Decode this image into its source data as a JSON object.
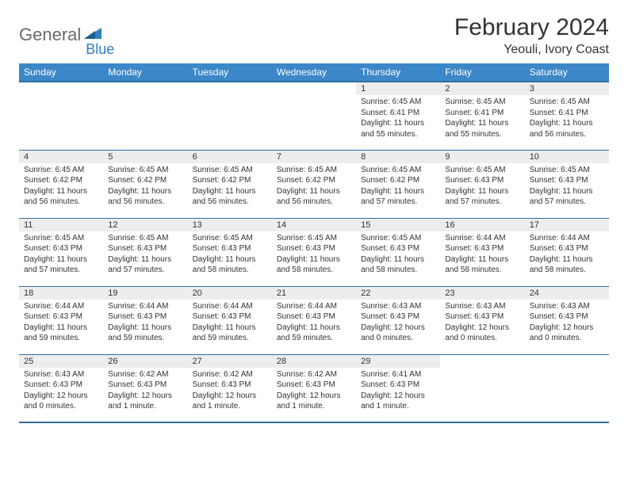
{
  "logo": {
    "text1": "General",
    "text2": "Blue"
  },
  "title": "February 2024",
  "location": "Yeouli, Ivory Coast",
  "colors": {
    "header_bg": "#3c87c7",
    "header_border": "#2f6fa6",
    "daynum_bg": "#ededed",
    "text": "#333333",
    "logo_gray": "#6b6b6b",
    "logo_blue": "#2f7ec0"
  },
  "weekdays": [
    "Sunday",
    "Monday",
    "Tuesday",
    "Wednesday",
    "Thursday",
    "Friday",
    "Saturday"
  ],
  "weeks": [
    [
      {
        "num": "",
        "sunrise": "",
        "sunset": "",
        "daylight": ""
      },
      {
        "num": "",
        "sunrise": "",
        "sunset": "",
        "daylight": ""
      },
      {
        "num": "",
        "sunrise": "",
        "sunset": "",
        "daylight": ""
      },
      {
        "num": "",
        "sunrise": "",
        "sunset": "",
        "daylight": ""
      },
      {
        "num": "1",
        "sunrise": "Sunrise: 6:45 AM",
        "sunset": "Sunset: 6:41 PM",
        "daylight": "Daylight: 11 hours and 55 minutes."
      },
      {
        "num": "2",
        "sunrise": "Sunrise: 6:45 AM",
        "sunset": "Sunset: 6:41 PM",
        "daylight": "Daylight: 11 hours and 55 minutes."
      },
      {
        "num": "3",
        "sunrise": "Sunrise: 6:45 AM",
        "sunset": "Sunset: 6:41 PM",
        "daylight": "Daylight: 11 hours and 56 minutes."
      }
    ],
    [
      {
        "num": "4",
        "sunrise": "Sunrise: 6:45 AM",
        "sunset": "Sunset: 6:42 PM",
        "daylight": "Daylight: 11 hours and 56 minutes."
      },
      {
        "num": "5",
        "sunrise": "Sunrise: 6:45 AM",
        "sunset": "Sunset: 6:42 PM",
        "daylight": "Daylight: 11 hours and 56 minutes."
      },
      {
        "num": "6",
        "sunrise": "Sunrise: 6:45 AM",
        "sunset": "Sunset: 6:42 PM",
        "daylight": "Daylight: 11 hours and 56 minutes."
      },
      {
        "num": "7",
        "sunrise": "Sunrise: 6:45 AM",
        "sunset": "Sunset: 6:42 PM",
        "daylight": "Daylight: 11 hours and 56 minutes."
      },
      {
        "num": "8",
        "sunrise": "Sunrise: 6:45 AM",
        "sunset": "Sunset: 6:42 PM",
        "daylight": "Daylight: 11 hours and 57 minutes."
      },
      {
        "num": "9",
        "sunrise": "Sunrise: 6:45 AM",
        "sunset": "Sunset: 6:43 PM",
        "daylight": "Daylight: 11 hours and 57 minutes."
      },
      {
        "num": "10",
        "sunrise": "Sunrise: 6:45 AM",
        "sunset": "Sunset: 6:43 PM",
        "daylight": "Daylight: 11 hours and 57 minutes."
      }
    ],
    [
      {
        "num": "11",
        "sunrise": "Sunrise: 6:45 AM",
        "sunset": "Sunset: 6:43 PM",
        "daylight": "Daylight: 11 hours and 57 minutes."
      },
      {
        "num": "12",
        "sunrise": "Sunrise: 6:45 AM",
        "sunset": "Sunset: 6:43 PM",
        "daylight": "Daylight: 11 hours and 57 minutes."
      },
      {
        "num": "13",
        "sunrise": "Sunrise: 6:45 AM",
        "sunset": "Sunset: 6:43 PM",
        "daylight": "Daylight: 11 hours and 58 minutes."
      },
      {
        "num": "14",
        "sunrise": "Sunrise: 6:45 AM",
        "sunset": "Sunset: 6:43 PM",
        "daylight": "Daylight: 11 hours and 58 minutes."
      },
      {
        "num": "15",
        "sunrise": "Sunrise: 6:45 AM",
        "sunset": "Sunset: 6:43 PM",
        "daylight": "Daylight: 11 hours and 58 minutes."
      },
      {
        "num": "16",
        "sunrise": "Sunrise: 6:44 AM",
        "sunset": "Sunset: 6:43 PM",
        "daylight": "Daylight: 11 hours and 58 minutes."
      },
      {
        "num": "17",
        "sunrise": "Sunrise: 6:44 AM",
        "sunset": "Sunset: 6:43 PM",
        "daylight": "Daylight: 11 hours and 58 minutes."
      }
    ],
    [
      {
        "num": "18",
        "sunrise": "Sunrise: 6:44 AM",
        "sunset": "Sunset: 6:43 PM",
        "daylight": "Daylight: 11 hours and 59 minutes."
      },
      {
        "num": "19",
        "sunrise": "Sunrise: 6:44 AM",
        "sunset": "Sunset: 6:43 PM",
        "daylight": "Daylight: 11 hours and 59 minutes."
      },
      {
        "num": "20",
        "sunrise": "Sunrise: 6:44 AM",
        "sunset": "Sunset: 6:43 PM",
        "daylight": "Daylight: 11 hours and 59 minutes."
      },
      {
        "num": "21",
        "sunrise": "Sunrise: 6:44 AM",
        "sunset": "Sunset: 6:43 PM",
        "daylight": "Daylight: 11 hours and 59 minutes."
      },
      {
        "num": "22",
        "sunrise": "Sunrise: 6:43 AM",
        "sunset": "Sunset: 6:43 PM",
        "daylight": "Daylight: 12 hours and 0 minutes."
      },
      {
        "num": "23",
        "sunrise": "Sunrise: 6:43 AM",
        "sunset": "Sunset: 6:43 PM",
        "daylight": "Daylight: 12 hours and 0 minutes."
      },
      {
        "num": "24",
        "sunrise": "Sunrise: 6:43 AM",
        "sunset": "Sunset: 6:43 PM",
        "daylight": "Daylight: 12 hours and 0 minutes."
      }
    ],
    [
      {
        "num": "25",
        "sunrise": "Sunrise: 6:43 AM",
        "sunset": "Sunset: 6:43 PM",
        "daylight": "Daylight: 12 hours and 0 minutes."
      },
      {
        "num": "26",
        "sunrise": "Sunrise: 6:42 AM",
        "sunset": "Sunset: 6:43 PM",
        "daylight": "Daylight: 12 hours and 1 minute."
      },
      {
        "num": "27",
        "sunrise": "Sunrise: 6:42 AM",
        "sunset": "Sunset: 6:43 PM",
        "daylight": "Daylight: 12 hours and 1 minute."
      },
      {
        "num": "28",
        "sunrise": "Sunrise: 6:42 AM",
        "sunset": "Sunset: 6:43 PM",
        "daylight": "Daylight: 12 hours and 1 minute."
      },
      {
        "num": "29",
        "sunrise": "Sunrise: 6:41 AM",
        "sunset": "Sunset: 6:43 PM",
        "daylight": "Daylight: 12 hours and 1 minute."
      },
      {
        "num": "",
        "sunrise": "",
        "sunset": "",
        "daylight": ""
      },
      {
        "num": "",
        "sunrise": "",
        "sunset": "",
        "daylight": ""
      }
    ]
  ]
}
